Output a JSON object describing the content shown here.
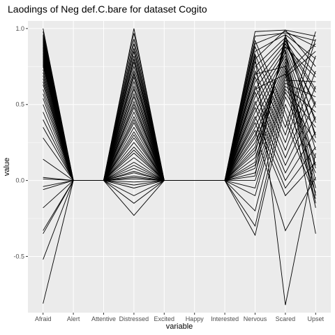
{
  "chart_data": {
    "type": "line",
    "title": "Laodings of Neg def.C.bare for dataset Cogito",
    "xlabel": "variable",
    "ylabel": "value",
    "categories": [
      "Afraid",
      "Alert",
      "Attentive",
      "Distressed",
      "Excited",
      "Happy",
      "Interested",
      "Nervous",
      "Scared",
      "Upset"
    ],
    "ylim": [
      -0.87,
      1.05
    ],
    "yticks": [
      -0.5,
      0.0,
      0.5,
      1.0
    ],
    "ytick_labels": [
      "-0.5",
      "0.0",
      "0.5",
      "1.0"
    ],
    "grid": true,
    "background": "#ebebeb",
    "gridline_color": "#ffffff",
    "line_color": "#000000",
    "series": [
      {
        "values": [
          1.0,
          0,
          0,
          1.0,
          0,
          0,
          0,
          0.98,
          0.99,
          0.95
        ]
      },
      {
        "values": [
          0.98,
          0,
          0,
          0.97,
          0,
          0,
          0,
          0.95,
          0.97,
          0.92
        ]
      },
      {
        "values": [
          0.96,
          0,
          0,
          0.93,
          0,
          0,
          0,
          0.9,
          0.98,
          0.88
        ]
      },
      {
        "values": [
          0.95,
          0,
          0,
          0.9,
          0,
          0,
          0,
          0.85,
          0.96,
          0.8
        ]
      },
      {
        "values": [
          0.94,
          0,
          0,
          0.87,
          0,
          0,
          0,
          0.8,
          0.99,
          0.75
        ]
      },
      {
        "values": [
          0.93,
          0,
          0,
          0.85,
          0,
          0,
          0,
          0.75,
          0.94,
          0.7
        ]
      },
      {
        "values": [
          0.92,
          0,
          0,
          0.82,
          0,
          0,
          0,
          0.7,
          0.92,
          0.6
        ]
      },
      {
        "values": [
          0.91,
          0,
          0,
          0.8,
          0,
          0,
          0,
          0.65,
          0.9,
          0.5
        ]
      },
      {
        "values": [
          0.9,
          0,
          0,
          0.78,
          0,
          0,
          0,
          0.6,
          0.88,
          0.4
        ]
      },
      {
        "values": [
          0.89,
          0,
          0,
          0.75,
          0,
          0,
          0,
          0.55,
          0.86,
          0.3
        ]
      },
      {
        "values": [
          0.88,
          0,
          0,
          0.72,
          0,
          0,
          0,
          0.5,
          0.84,
          0.2
        ]
      },
      {
        "values": [
          0.87,
          0,
          0,
          0.7,
          0,
          0,
          0,
          0.45,
          0.82,
          0.1
        ]
      },
      {
        "values": [
          0.86,
          0,
          0,
          0.68,
          0,
          0,
          0,
          0.4,
          0.8,
          0.0
        ]
      },
      {
        "values": [
          0.85,
          0,
          0,
          0.65,
          0,
          0,
          0,
          0.35,
          0.78,
          -0.05
        ]
      },
      {
        "values": [
          0.84,
          0,
          0,
          0.62,
          0,
          0,
          0,
          0.3,
          0.76,
          -0.1
        ]
      },
      {
        "values": [
          0.83,
          0,
          0,
          0.6,
          0,
          0,
          0,
          0.25,
          0.74,
          -0.15
        ]
      },
      {
        "values": [
          0.82,
          0,
          0,
          0.57,
          0,
          0,
          0,
          0.2,
          0.72,
          -0.18
        ]
      },
      {
        "values": [
          0.81,
          0,
          0,
          0.55,
          0,
          0,
          0,
          0.15,
          0.7,
          0.9
        ]
      },
      {
        "values": [
          0.8,
          0,
          0,
          0.52,
          0,
          0,
          0,
          0.1,
          0.68,
          0.85
        ]
      },
      {
        "values": [
          0.79,
          0,
          0,
          0.5,
          0,
          0,
          0,
          0.05,
          0.66,
          0.65
        ]
      },
      {
        "values": [
          0.78,
          0,
          0,
          0.48,
          0,
          0,
          0,
          0.0,
          0.64,
          0.55
        ]
      },
      {
        "values": [
          0.77,
          0,
          0,
          0.45,
          0,
          0,
          0,
          -0.05,
          0.62,
          0.45
        ]
      },
      {
        "values": [
          0.76,
          0,
          0,
          0.42,
          0,
          0,
          0,
          -0.1,
          0.6,
          0.35
        ]
      },
      {
        "values": [
          0.75,
          0,
          0,
          0.4,
          0,
          0,
          0,
          -0.2,
          0.58,
          0.25
        ]
      },
      {
        "values": [
          0.73,
          0,
          0,
          0.38,
          0,
          0,
          0,
          -0.3,
          0.55,
          0.15
        ]
      },
      {
        "values": [
          0.71,
          0,
          0,
          0.35,
          0,
          0,
          0,
          -0.36,
          0.5,
          0.05
        ]
      },
      {
        "values": [
          0.69,
          0,
          0,
          0.32,
          0,
          0,
          0,
          0.92,
          0.45,
          -0.08
        ]
      },
      {
        "values": [
          0.67,
          0,
          0,
          0.3,
          0,
          0,
          0,
          0.88,
          0.4,
          -0.12
        ]
      },
      {
        "values": [
          0.65,
          0,
          0,
          0.28,
          0,
          0,
          0,
          0.83,
          0.35,
          0.98
        ]
      },
      {
        "values": [
          0.63,
          0,
          0,
          0.25,
          0,
          0,
          0,
          0.78,
          0.3,
          0.93
        ]
      },
      {
        "values": [
          0.6,
          0,
          0,
          0.22,
          0,
          0,
          0,
          0.72,
          0.25,
          0.82
        ]
      },
      {
        "values": [
          0.57,
          0,
          0,
          0.2,
          0,
          0,
          0,
          0.68,
          0.2,
          0.72
        ]
      },
      {
        "values": [
          0.54,
          0,
          0,
          0.18,
          0,
          0,
          0,
          0.62,
          0.15,
          0.62
        ]
      },
      {
        "values": [
          0.5,
          0,
          0,
          0.15,
          0,
          0,
          0,
          0.58,
          0.1,
          0.52
        ]
      },
      {
        "values": [
          0.45,
          0,
          0,
          0.12,
          0,
          0,
          0,
          0.52,
          0.05,
          0.42
        ]
      },
      {
        "values": [
          0.4,
          0,
          0,
          0.1,
          0,
          0,
          0,
          0.48,
          0.0,
          0.32
        ]
      },
      {
        "values": [
          0.35,
          0,
          0,
          0.08,
          0,
          0,
          0,
          0.42,
          -0.05,
          0.22
        ]
      },
      {
        "values": [
          0.28,
          0,
          0,
          0.06,
          0,
          0,
          0,
          0.38,
          -0.1,
          0.12
        ]
      },
      {
        "values": [
          0.14,
          0,
          0,
          0.05,
          0,
          0,
          0,
          0.33,
          -0.33,
          0.02
        ]
      },
      {
        "values": [
          0.02,
          0,
          0,
          0.03,
          0,
          0,
          0,
          0.28,
          0.85,
          -0.1
        ]
      },
      {
        "values": [
          0.01,
          0,
          0,
          0.02,
          0,
          0,
          0,
          0.22,
          0.88,
          0.68
        ]
      },
      {
        "values": [
          -0.04,
          0,
          0,
          0.01,
          0,
          0,
          0,
          0.18,
          0.9,
          0.58
        ]
      },
      {
        "values": [
          -0.06,
          0,
          0,
          -0.01,
          0,
          0,
          0,
          0.12,
          0.92,
          0.48
        ]
      },
      {
        "values": [
          -0.18,
          0,
          0,
          -0.03,
          0,
          0,
          0,
          0.08,
          0.94,
          0.38
        ]
      },
      {
        "values": [
          -0.33,
          0,
          0,
          -0.05,
          0,
          0,
          0,
          0.03,
          0.96,
          0.28
        ]
      },
      {
        "values": [
          -0.35,
          0,
          0,
          -0.1,
          0,
          0,
          0,
          0.82,
          -0.82,
          0.18
        ]
      },
      {
        "values": [
          -0.52,
          0,
          0,
          -0.15,
          0,
          0,
          0,
          0.7,
          0.75,
          0.08
        ]
      },
      {
        "values": [
          -0.81,
          0,
          0,
          -0.23,
          0,
          0,
          0,
          0.6,
          0.7,
          -0.35
        ]
      }
    ]
  }
}
